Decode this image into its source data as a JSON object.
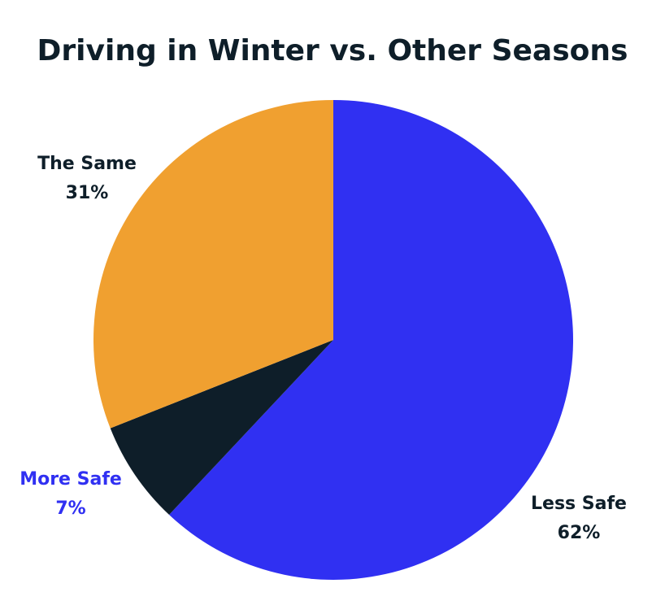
{
  "chart_data": {
    "type": "pie",
    "title": "Driving in Winter vs. Other Seasons",
    "categories": [
      "Less Safe",
      "More Safe",
      "The Same"
    ],
    "values": [
      62,
      7,
      31
    ],
    "value_labels": [
      "62%",
      "7%",
      "31%"
    ],
    "colors": [
      "#3030f2",
      "#0e1e29",
      "#f0a030"
    ],
    "label_colors": [
      "#0e1e29",
      "#3030f2",
      "#0e1e29"
    ]
  }
}
